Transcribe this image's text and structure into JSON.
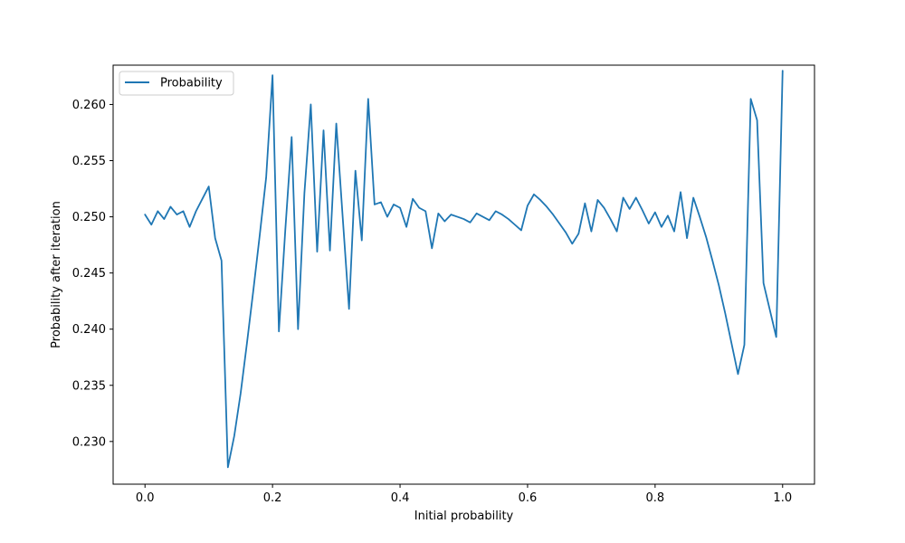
{
  "chart_data": {
    "type": "line",
    "title": "",
    "xlabel": "Initial probability",
    "ylabel": "Probability after iteration",
    "xlim": [
      -0.05,
      1.05
    ],
    "ylim": [
      0.2262,
      0.2635
    ],
    "xticks": [
      0.0,
      0.2,
      0.4,
      0.6,
      0.8,
      1.0
    ],
    "xtick_labels": [
      "0.0",
      "0.2",
      "0.4",
      "0.6",
      "0.8",
      "1.0"
    ],
    "yticks": [
      0.23,
      0.235,
      0.24,
      0.245,
      0.25,
      0.255,
      0.26
    ],
    "ytick_labels": [
      "0.230",
      "0.235",
      "0.240",
      "0.245",
      "0.250",
      "0.255",
      "0.260"
    ],
    "grid": false,
    "legend_position": "top-left",
    "series": [
      {
        "name": "Probability",
        "color": "#1f77b4",
        "x": [
          0.0,
          0.01,
          0.02,
          0.03,
          0.04,
          0.05,
          0.06,
          0.07,
          0.08,
          0.09,
          0.1,
          0.11,
          0.12,
          0.13,
          0.14,
          0.15,
          0.16,
          0.17,
          0.18,
          0.19,
          0.2,
          0.21,
          0.22,
          0.23,
          0.24,
          0.25,
          0.26,
          0.27,
          0.28,
          0.29,
          0.3,
          0.31,
          0.32,
          0.33,
          0.34,
          0.35,
          0.36,
          0.37,
          0.38,
          0.39,
          0.4,
          0.41,
          0.42,
          0.43,
          0.44,
          0.45,
          0.46,
          0.47,
          0.48,
          0.49,
          0.5,
          0.51,
          0.52,
          0.53,
          0.54,
          0.55,
          0.56,
          0.57,
          0.58,
          0.59,
          0.6,
          0.61,
          0.62,
          0.63,
          0.64,
          0.65,
          0.66,
          0.67,
          0.68,
          0.69,
          0.7,
          0.71,
          0.72,
          0.73,
          0.74,
          0.75,
          0.76,
          0.77,
          0.78,
          0.79,
          0.8,
          0.81,
          0.82,
          0.83,
          0.84,
          0.85,
          0.86,
          0.87,
          0.88,
          0.89,
          0.9,
          0.91,
          0.92,
          0.93,
          0.94,
          0.95,
          0.96,
          0.97,
          0.98,
          0.99,
          1.0
        ],
        "y": [
          0.2502,
          0.2493,
          0.2505,
          0.2498,
          0.2509,
          0.2502,
          0.2505,
          0.2491,
          0.2505,
          0.2516,
          0.2527,
          0.2481,
          0.2461,
          0.2277,
          0.2305,
          0.2343,
          0.2388,
          0.2435,
          0.2484,
          0.2535,
          0.2626,
          0.2398,
          0.2488,
          0.2571,
          0.24,
          0.2521,
          0.26,
          0.2469,
          0.2577,
          0.247,
          0.2583,
          0.25,
          0.2418,
          0.2541,
          0.2479,
          0.2605,
          0.2511,
          0.2513,
          0.25,
          0.2511,
          0.2508,
          0.2491,
          0.2516,
          0.2508,
          0.2505,
          0.2472,
          0.2503,
          0.2496,
          0.2502,
          0.25,
          0.2498,
          0.2495,
          0.2503,
          0.25,
          0.2497,
          0.2505,
          0.2502,
          0.2498,
          0.2493,
          0.2488,
          0.251,
          0.252,
          0.2515,
          0.2509,
          0.2502,
          0.2494,
          0.2486,
          0.2476,
          0.2485,
          0.2512,
          0.2487,
          0.2515,
          0.2508,
          0.2498,
          0.2487,
          0.2517,
          0.2507,
          0.2517,
          0.2506,
          0.2494,
          0.2504,
          0.2491,
          0.2501,
          0.2487,
          0.2522,
          0.2481,
          0.2517,
          0.25,
          0.2482,
          0.2461,
          0.2439,
          0.2414,
          0.2387,
          0.236,
          0.2386,
          0.2605,
          0.2586,
          0.2441,
          0.2417,
          0.2393,
          0.263
        ]
      }
    ]
  }
}
